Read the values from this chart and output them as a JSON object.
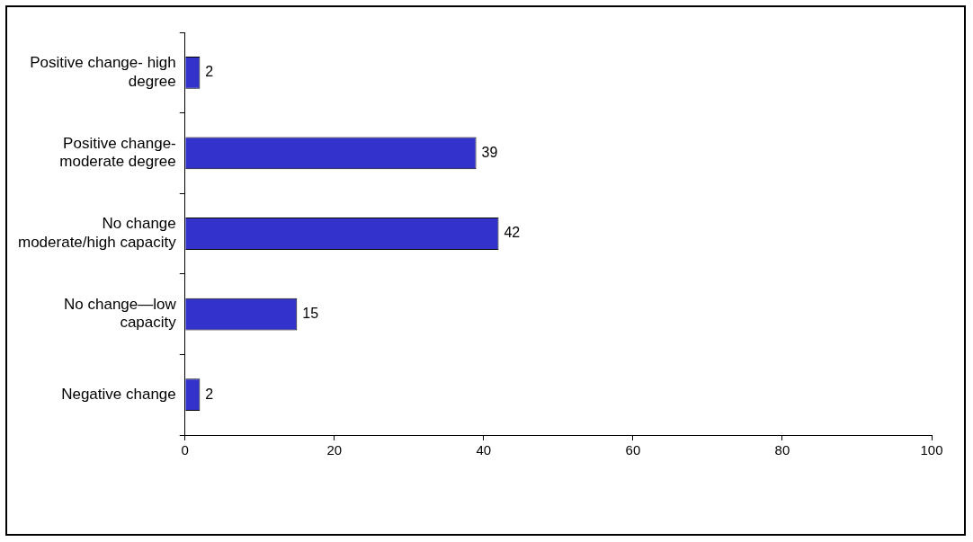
{
  "chart_data": {
    "type": "bar",
    "orientation": "horizontal",
    "categories": [
      "Positive change- high degree",
      "Positive change- moderate degree",
      "No change moderate/high capacity",
      "No change—low capacity",
      "Negative change"
    ],
    "values": [
      2,
      39,
      42,
      15,
      2
    ],
    "color": "#3333cc",
    "xlim": [
      0,
      100
    ],
    "xticks": [
      0,
      20,
      40,
      60,
      80,
      100
    ],
    "grid": false,
    "legend": false,
    "data_labels": true
  }
}
